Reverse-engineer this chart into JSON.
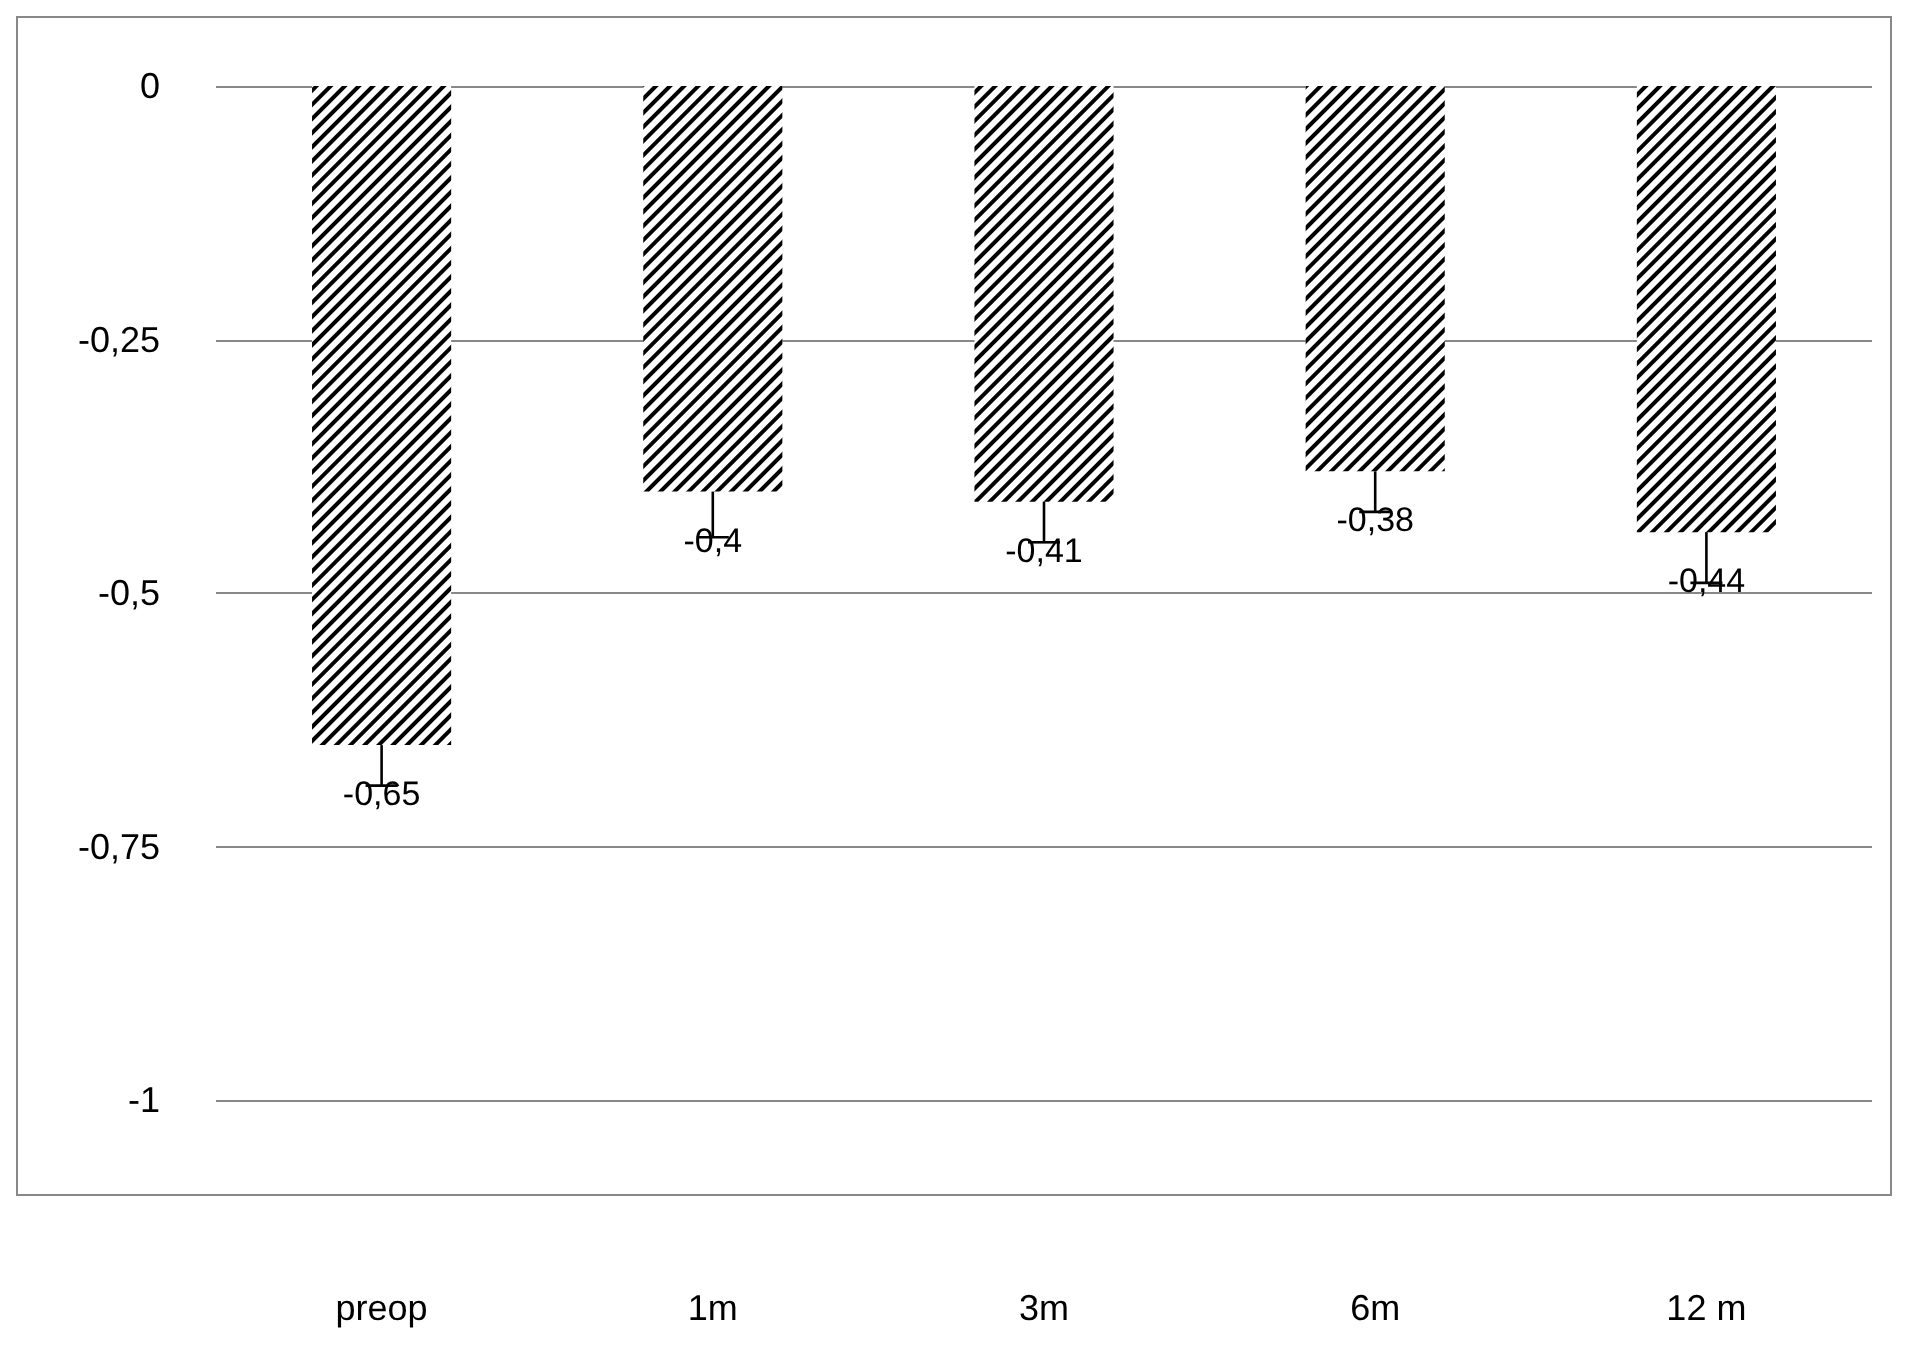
{
  "chart_data": {
    "type": "bar",
    "categories": [
      "preop",
      "1m",
      "3m",
      "6m",
      "12 m"
    ],
    "values": [
      -0.65,
      -0.4,
      -0.41,
      -0.38,
      -0.44
    ],
    "value_labels": [
      "-0,65",
      "-0,4",
      "-0,41",
      "-0,38",
      "-0,44"
    ],
    "errors": [
      [
        -0.69,
        -0.65
      ],
      [
        -0.445,
        -0.4
      ],
      [
        -0.45,
        -0.41
      ],
      [
        -0.42,
        -0.38
      ],
      [
        -0.49,
        -0.44
      ]
    ],
    "color": "#000000",
    "ylim": [
      -1,
      0
    ],
    "yticks": [
      {
        "value": -1,
        "label": "-1"
      },
      {
        "value": -0.75,
        "label": "-0,75"
      },
      {
        "value": -0.5,
        "label": "-0,5"
      },
      {
        "value": -0.25,
        "label": "-0,25"
      },
      {
        "value": 0,
        "label": "0"
      }
    ],
    "grid": "y"
  }
}
